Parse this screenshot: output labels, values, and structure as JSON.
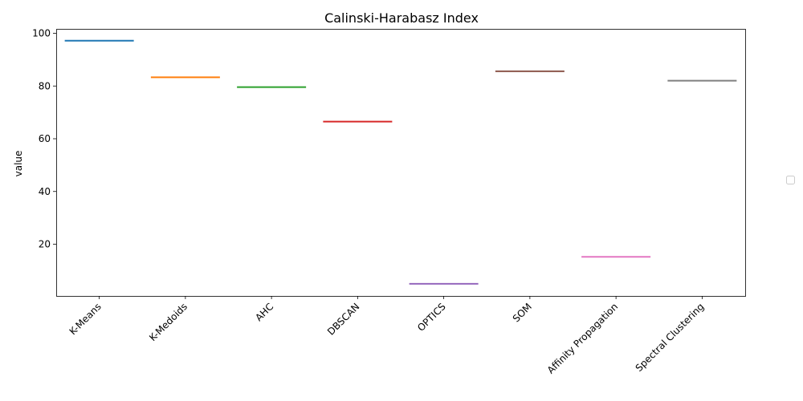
{
  "chart_data": {
    "type": "bar",
    "title": "Calinski-Harabasz Index",
    "xlabel": "",
    "ylabel": "value",
    "categories": [
      "K-Means",
      "K-Medoids",
      "AHC",
      "DBSCAN",
      "OPTICS",
      "SOM",
      "Affinity Propagation",
      "Spectral Clustering"
    ],
    "values": [
      97.2,
      83.3,
      79.6,
      66.5,
      5.0,
      85.6,
      15.2,
      82.0
    ],
    "colors": [
      "#1f77b4",
      "#ff7f0e",
      "#2ca02c",
      "#d62728",
      "#9467bd",
      "#8c564b",
      "#e377c2",
      "#7f7f7f"
    ],
    "ylim": [
      0,
      100
    ],
    "yticks": [
      20,
      40,
      60,
      80,
      100
    ],
    "grid": false,
    "legend": "right, empty"
  }
}
